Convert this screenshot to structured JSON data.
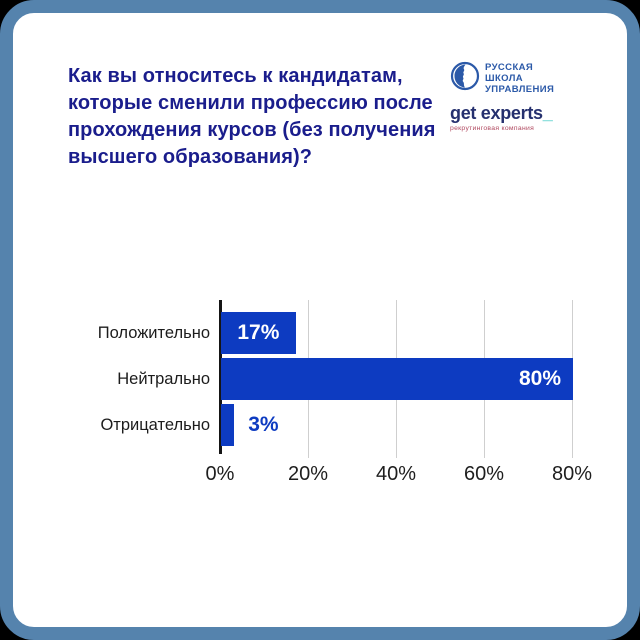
{
  "frame": {
    "border_color": "#5583ad",
    "background": "#ffffff",
    "outer_background": "#000000"
  },
  "header": {
    "title": "Как вы относитесь к кандидатам, которые сменили профессию после прохождения курсов (без получения высшего образования)?",
    "title_lines": [
      "Как вы относитесь к кандидатам,",
      "которые сменили профессию после",
      "прохождения курсов (без получения",
      "высшего образования)?"
    ],
    "title_color": "#1a1d8c"
  },
  "logos": {
    "rsu": {
      "icon": "profile-face-in-circle-icon",
      "lines": [
        "РУССКАЯ",
        "ШКОЛА",
        "УПРАВЛЕНИЯ"
      ],
      "color": "#2b59a8"
    },
    "get_experts": {
      "wordmark": "get experts",
      "underscore": "_",
      "tagline": "рекрутинговая компания",
      "wordmark_color": "#25306e",
      "underscore_color": "#3fc9c4",
      "tagline_color": "#b0485f"
    }
  },
  "chart_data": {
    "type": "bar",
    "orientation": "horizontal",
    "categories": [
      "Положительно",
      "Нейтрально",
      "Отрицательно"
    ],
    "values": [
      17,
      80,
      3
    ],
    "value_labels": [
      "17%",
      "80%",
      "3%"
    ],
    "value_label_positions": [
      "inside-center",
      "inside-right",
      "outside"
    ],
    "x_ticks": [
      "0%",
      "20%",
      "40%",
      "60%",
      "80%"
    ],
    "x_tick_values": [
      0,
      20,
      40,
      60,
      80
    ],
    "xlim": [
      0,
      80
    ],
    "grid": true,
    "bar_color": "#0d3bc1",
    "value_label_color_inside": "#ffffff",
    "value_label_color_outside": "#0d3bc1",
    "gridline_color": "#cfcfcf",
    "axis_line_color": "#151515",
    "category_label_color": "#1c1c1c",
    "tick_label_color": "#1e1e1e"
  }
}
